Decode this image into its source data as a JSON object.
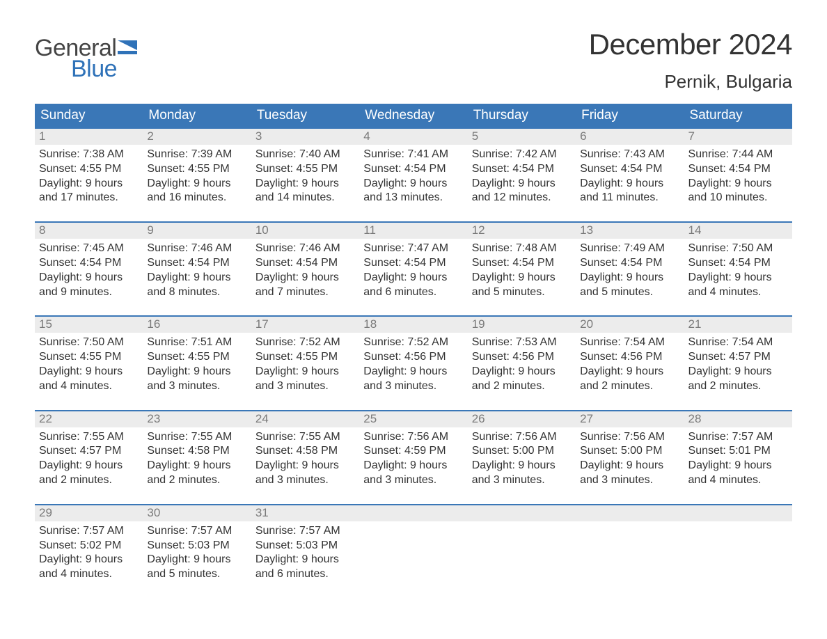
{
  "logo": {
    "general": "General",
    "blue": "Blue",
    "brand_color": "#2f72b8"
  },
  "title": "December 2024",
  "location": "Pernik, Bulgaria",
  "headers": [
    "Sunday",
    "Monday",
    "Tuesday",
    "Wednesday",
    "Thursday",
    "Friday",
    "Saturday"
  ],
  "colors": {
    "header_bg": "#3a77b7",
    "header_text": "#ffffff",
    "daynum_bg": "#ececec",
    "daynum_text": "#7a7a7a",
    "border_top": "#3a77b7",
    "body_text": "#333333",
    "background": "#ffffff"
  },
  "weeks": [
    [
      {
        "day": "1",
        "sunrise": "Sunrise: 7:38 AM",
        "sunset": "Sunset: 4:55 PM",
        "dl1": "Daylight: 9 hours",
        "dl2": "and 17 minutes."
      },
      {
        "day": "2",
        "sunrise": "Sunrise: 7:39 AM",
        "sunset": "Sunset: 4:55 PM",
        "dl1": "Daylight: 9 hours",
        "dl2": "and 16 minutes."
      },
      {
        "day": "3",
        "sunrise": "Sunrise: 7:40 AM",
        "sunset": "Sunset: 4:55 PM",
        "dl1": "Daylight: 9 hours",
        "dl2": "and 14 minutes."
      },
      {
        "day": "4",
        "sunrise": "Sunrise: 7:41 AM",
        "sunset": "Sunset: 4:54 PM",
        "dl1": "Daylight: 9 hours",
        "dl2": "and 13 minutes."
      },
      {
        "day": "5",
        "sunrise": "Sunrise: 7:42 AM",
        "sunset": "Sunset: 4:54 PM",
        "dl1": "Daylight: 9 hours",
        "dl2": "and 12 minutes."
      },
      {
        "day": "6",
        "sunrise": "Sunrise: 7:43 AM",
        "sunset": "Sunset: 4:54 PM",
        "dl1": "Daylight: 9 hours",
        "dl2": "and 11 minutes."
      },
      {
        "day": "7",
        "sunrise": "Sunrise: 7:44 AM",
        "sunset": "Sunset: 4:54 PM",
        "dl1": "Daylight: 9 hours",
        "dl2": "and 10 minutes."
      }
    ],
    [
      {
        "day": "8",
        "sunrise": "Sunrise: 7:45 AM",
        "sunset": "Sunset: 4:54 PM",
        "dl1": "Daylight: 9 hours",
        "dl2": "and 9 minutes."
      },
      {
        "day": "9",
        "sunrise": "Sunrise: 7:46 AM",
        "sunset": "Sunset: 4:54 PM",
        "dl1": "Daylight: 9 hours",
        "dl2": "and 8 minutes."
      },
      {
        "day": "10",
        "sunrise": "Sunrise: 7:46 AM",
        "sunset": "Sunset: 4:54 PM",
        "dl1": "Daylight: 9 hours",
        "dl2": "and 7 minutes."
      },
      {
        "day": "11",
        "sunrise": "Sunrise: 7:47 AM",
        "sunset": "Sunset: 4:54 PM",
        "dl1": "Daylight: 9 hours",
        "dl2": "and 6 minutes."
      },
      {
        "day": "12",
        "sunrise": "Sunrise: 7:48 AM",
        "sunset": "Sunset: 4:54 PM",
        "dl1": "Daylight: 9 hours",
        "dl2": "and 5 minutes."
      },
      {
        "day": "13",
        "sunrise": "Sunrise: 7:49 AM",
        "sunset": "Sunset: 4:54 PM",
        "dl1": "Daylight: 9 hours",
        "dl2": "and 5 minutes."
      },
      {
        "day": "14",
        "sunrise": "Sunrise: 7:50 AM",
        "sunset": "Sunset: 4:54 PM",
        "dl1": "Daylight: 9 hours",
        "dl2": "and 4 minutes."
      }
    ],
    [
      {
        "day": "15",
        "sunrise": "Sunrise: 7:50 AM",
        "sunset": "Sunset: 4:55 PM",
        "dl1": "Daylight: 9 hours",
        "dl2": "and 4 minutes."
      },
      {
        "day": "16",
        "sunrise": "Sunrise: 7:51 AM",
        "sunset": "Sunset: 4:55 PM",
        "dl1": "Daylight: 9 hours",
        "dl2": "and 3 minutes."
      },
      {
        "day": "17",
        "sunrise": "Sunrise: 7:52 AM",
        "sunset": "Sunset: 4:55 PM",
        "dl1": "Daylight: 9 hours",
        "dl2": "and 3 minutes."
      },
      {
        "day": "18",
        "sunrise": "Sunrise: 7:52 AM",
        "sunset": "Sunset: 4:56 PM",
        "dl1": "Daylight: 9 hours",
        "dl2": "and 3 minutes."
      },
      {
        "day": "19",
        "sunrise": "Sunrise: 7:53 AM",
        "sunset": "Sunset: 4:56 PM",
        "dl1": "Daylight: 9 hours",
        "dl2": "and 2 minutes."
      },
      {
        "day": "20",
        "sunrise": "Sunrise: 7:54 AM",
        "sunset": "Sunset: 4:56 PM",
        "dl1": "Daylight: 9 hours",
        "dl2": "and 2 minutes."
      },
      {
        "day": "21",
        "sunrise": "Sunrise: 7:54 AM",
        "sunset": "Sunset: 4:57 PM",
        "dl1": "Daylight: 9 hours",
        "dl2": "and 2 minutes."
      }
    ],
    [
      {
        "day": "22",
        "sunrise": "Sunrise: 7:55 AM",
        "sunset": "Sunset: 4:57 PM",
        "dl1": "Daylight: 9 hours",
        "dl2": "and 2 minutes."
      },
      {
        "day": "23",
        "sunrise": "Sunrise: 7:55 AM",
        "sunset": "Sunset: 4:58 PM",
        "dl1": "Daylight: 9 hours",
        "dl2": "and 2 minutes."
      },
      {
        "day": "24",
        "sunrise": "Sunrise: 7:55 AM",
        "sunset": "Sunset: 4:58 PM",
        "dl1": "Daylight: 9 hours",
        "dl2": "and 3 minutes."
      },
      {
        "day": "25",
        "sunrise": "Sunrise: 7:56 AM",
        "sunset": "Sunset: 4:59 PM",
        "dl1": "Daylight: 9 hours",
        "dl2": "and 3 minutes."
      },
      {
        "day": "26",
        "sunrise": "Sunrise: 7:56 AM",
        "sunset": "Sunset: 5:00 PM",
        "dl1": "Daylight: 9 hours",
        "dl2": "and 3 minutes."
      },
      {
        "day": "27",
        "sunrise": "Sunrise: 7:56 AM",
        "sunset": "Sunset: 5:00 PM",
        "dl1": "Daylight: 9 hours",
        "dl2": "and 3 minutes."
      },
      {
        "day": "28",
        "sunrise": "Sunrise: 7:57 AM",
        "sunset": "Sunset: 5:01 PM",
        "dl1": "Daylight: 9 hours",
        "dl2": "and 4 minutes."
      }
    ],
    [
      {
        "day": "29",
        "sunrise": "Sunrise: 7:57 AM",
        "sunset": "Sunset: 5:02 PM",
        "dl1": "Daylight: 9 hours",
        "dl2": "and 4 minutes."
      },
      {
        "day": "30",
        "sunrise": "Sunrise: 7:57 AM",
        "sunset": "Sunset: 5:03 PM",
        "dl1": "Daylight: 9 hours",
        "dl2": "and 5 minutes."
      },
      {
        "day": "31",
        "sunrise": "Sunrise: 7:57 AM",
        "sunset": "Sunset: 5:03 PM",
        "dl1": "Daylight: 9 hours",
        "dl2": "and 6 minutes."
      },
      null,
      null,
      null,
      null
    ]
  ]
}
